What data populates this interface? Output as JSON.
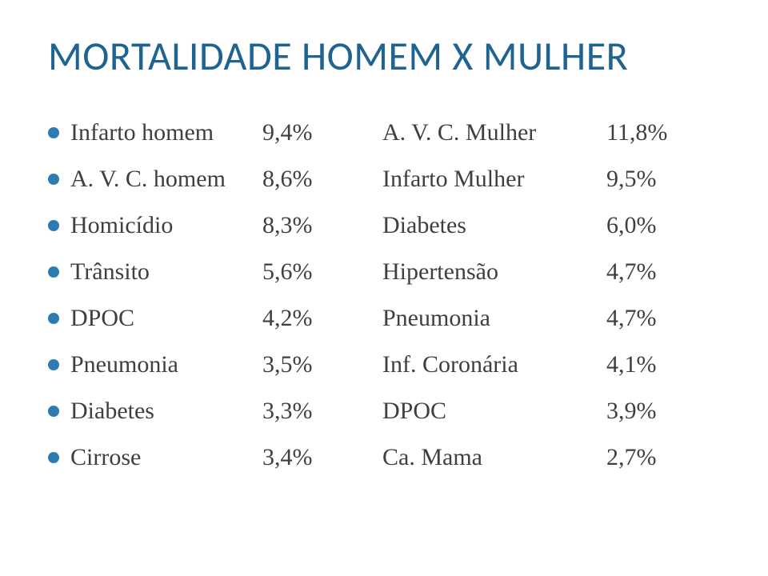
{
  "title": "MORTALIDADE HOMEM X MULHER",
  "title_color": "#1f6391",
  "title_fontsize": 50,
  "bullet_color": "#2e7ab3",
  "text_color": "#3f3f3f",
  "row_fontsize": 30,
  "background_color": "#ffffff",
  "rows": [
    {
      "label_left": "Infarto homem",
      "pct_left": "9,4%",
      "label_right": "A. V. C. Mulher",
      "pct_right": "11,8%"
    },
    {
      "label_left": "A. V. C. homem",
      "pct_left": "8,6%",
      "label_right": "Infarto Mulher",
      "pct_right": "9,5%"
    },
    {
      "label_left": "Homicídio",
      "pct_left": "8,3%",
      "label_right": "Diabetes",
      "pct_right": "6,0%"
    },
    {
      "label_left": "Trânsito",
      "pct_left": "5,6%",
      "label_right": "Hipertensão",
      "pct_right": "4,7%"
    },
    {
      "label_left": "DPOC",
      "pct_left": "4,2%",
      "label_right": "Pneumonia",
      "pct_right": "4,7%"
    },
    {
      "label_left": "Pneumonia",
      "pct_left": "3,5%",
      "label_right": "Inf. Coronária",
      "pct_right": "4,1%"
    },
    {
      "label_left": "Diabetes",
      "pct_left": "3,3%",
      "label_right": "DPOC",
      "pct_right": "3,9%"
    },
    {
      "label_left": "Cirrose",
      "pct_left": "3,4%",
      "label_right": "Ca. Mama",
      "pct_right": "2,7%"
    }
  ]
}
